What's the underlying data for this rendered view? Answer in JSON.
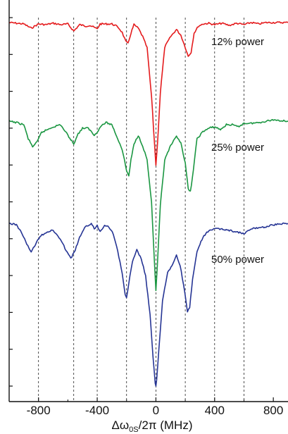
{
  "chart_data": {
    "type": "line",
    "xlabel_main": "Δω",
    "xlabel_sub": "0S",
    "xlabel_rest": "/2π (MHz)",
    "xlim": [
      -1000,
      900
    ],
    "xticks": [
      -800,
      -400,
      0,
      400,
      800
    ],
    "xtick_labels": [
      "-800",
      "-400",
      "0",
      "400",
      "800"
    ],
    "dashed_gridlines_x": [
      -800,
      -560,
      -400,
      -200,
      0,
      200,
      400,
      600
    ],
    "grid": true,
    "yaxis": {
      "tick_count": 11,
      "tick_labels": false
    },
    "series": [
      {
        "label": "12% power",
        "color": "#e41a1c",
        "baseline_y": 32,
        "points": [
          [
            -1000,
            0
          ],
          [
            -900,
            2
          ],
          [
            -850,
            8
          ],
          [
            -800,
            2
          ],
          [
            -750,
            3
          ],
          [
            -700,
            1
          ],
          [
            -650,
            3
          ],
          [
            -600,
            2
          ],
          [
            -560,
            12
          ],
          [
            -520,
            3
          ],
          [
            -480,
            5
          ],
          [
            -450,
            4
          ],
          [
            -400,
            9
          ],
          [
            -380,
            2
          ],
          [
            -340,
            2
          ],
          [
            -300,
            2
          ],
          [
            -260,
            6
          ],
          [
            -230,
            14
          ],
          [
            -205,
            27
          ],
          [
            -190,
            30
          ],
          [
            -170,
            15
          ],
          [
            -150,
            3
          ],
          [
            -120,
            8
          ],
          [
            -90,
            20
          ],
          [
            -60,
            36
          ],
          [
            -30,
            105
          ],
          [
            -10,
            170
          ],
          [
            0,
            202
          ],
          [
            10,
            175
          ],
          [
            30,
            100
          ],
          [
            60,
            35
          ],
          [
            100,
            20
          ],
          [
            140,
            10
          ],
          [
            170,
            18
          ],
          [
            200,
            35
          ],
          [
            220,
            48
          ],
          [
            240,
            42
          ],
          [
            260,
            15
          ],
          [
            290,
            5
          ],
          [
            320,
            2
          ],
          [
            360,
            1
          ],
          [
            400,
            3
          ],
          [
            450,
            1
          ],
          [
            500,
            4
          ],
          [
            550,
            1
          ],
          [
            600,
            3
          ],
          [
            650,
            0
          ],
          [
            700,
            2
          ],
          [
            750,
            0
          ],
          [
            800,
            0
          ],
          [
            900,
            0
          ]
        ]
      },
      {
        "label": "25% power",
        "color": "#1a9641",
        "baseline_y": 172,
        "points": [
          [
            -1000,
            0
          ],
          [
            -950,
            2
          ],
          [
            -900,
            5
          ],
          [
            -870,
            25
          ],
          [
            -840,
            36
          ],
          [
            -810,
            30
          ],
          [
            -780,
            16
          ],
          [
            -740,
            12
          ],
          [
            -700,
            8
          ],
          [
            -650,
            5
          ],
          [
            -600,
            20
          ],
          [
            -560,
            32
          ],
          [
            -530,
            18
          ],
          [
            -500,
            10
          ],
          [
            -460,
            10
          ],
          [
            -420,
            20
          ],
          [
            -400,
            15
          ],
          [
            -370,
            6
          ],
          [
            -340,
            2
          ],
          [
            -300,
            5
          ],
          [
            -260,
            25
          ],
          [
            -230,
            40
          ],
          [
            -200,
            70
          ],
          [
            -185,
            78
          ],
          [
            -170,
            55
          ],
          [
            -150,
            33
          ],
          [
            -120,
            20
          ],
          [
            -90,
            35
          ],
          [
            -60,
            55
          ],
          [
            -30,
            115
          ],
          [
            -10,
            200
          ],
          [
            0,
            240
          ],
          [
            10,
            205
          ],
          [
            30,
            120
          ],
          [
            60,
            55
          ],
          [
            100,
            35
          ],
          [
            140,
            22
          ],
          [
            170,
            30
          ],
          [
            200,
            60
          ],
          [
            220,
            96
          ],
          [
            235,
            100
          ],
          [
            255,
            70
          ],
          [
            280,
            25
          ],
          [
            320,
            15
          ],
          [
            360,
            10
          ],
          [
            400,
            8
          ],
          [
            440,
            12
          ],
          [
            480,
            5
          ],
          [
            520,
            5
          ],
          [
            560,
            8
          ],
          [
            600,
            3
          ],
          [
            650,
            3
          ],
          [
            700,
            2
          ],
          [
            750,
            0
          ],
          [
            800,
            -2
          ],
          [
            900,
            0
          ]
        ]
      },
      {
        "label": "50% power",
        "color": "#253494",
        "baseline_y": 317,
        "points": [
          [
            -1000,
            0
          ],
          [
            -950,
            2
          ],
          [
            -910,
            15
          ],
          [
            -880,
            30
          ],
          [
            -850,
            40
          ],
          [
            -820,
            30
          ],
          [
            -790,
            18
          ],
          [
            -740,
            12
          ],
          [
            -700,
            10
          ],
          [
            -660,
            20
          ],
          [
            -620,
            35
          ],
          [
            -580,
            50
          ],
          [
            -550,
            38
          ],
          [
            -520,
            20
          ],
          [
            -480,
            5
          ],
          [
            -440,
            0
          ],
          [
            -420,
            8
          ],
          [
            -400,
            3
          ],
          [
            -380,
            12
          ],
          [
            -350,
            2
          ],
          [
            -320,
            5
          ],
          [
            -290,
            15
          ],
          [
            -260,
            40
          ],
          [
            -230,
            70
          ],
          [
            -210,
            102
          ],
          [
            -200,
            106
          ],
          [
            -185,
            85
          ],
          [
            -160,
            55
          ],
          [
            -130,
            38
          ],
          [
            -100,
            50
          ],
          [
            -70,
            75
          ],
          [
            -40,
            130
          ],
          [
            -20,
            190
          ],
          [
            -5,
            226
          ],
          [
            0,
            230
          ],
          [
            5,
            222
          ],
          [
            20,
            180
          ],
          [
            45,
            110
          ],
          [
            80,
            70
          ],
          [
            110,
            60
          ],
          [
            140,
            45
          ],
          [
            165,
            60
          ],
          [
            195,
            95
          ],
          [
            215,
            125
          ],
          [
            230,
            120
          ],
          [
            250,
            80
          ],
          [
            280,
            40
          ],
          [
            320,
            20
          ],
          [
            360,
            10
          ],
          [
            400,
            8
          ],
          [
            450,
            8
          ],
          [
            500,
            10
          ],
          [
            550,
            12
          ],
          [
            600,
            15
          ],
          [
            650,
            8
          ],
          [
            700,
            6
          ],
          [
            750,
            5
          ],
          [
            800,
            2
          ],
          [
            900,
            0
          ]
        ]
      }
    ]
  }
}
